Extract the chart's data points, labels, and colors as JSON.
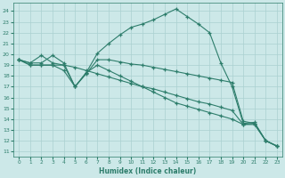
{
  "xlabel": "Humidex (Indice chaleur)",
  "line_color": "#2d7d6b",
  "bg_color": "#cce8e8",
  "grid_color": "#aad0d0",
  "xlim": [
    -0.5,
    23.5
  ],
  "ylim": [
    10.5,
    24.8
  ],
  "xticks": [
    0,
    1,
    2,
    3,
    4,
    5,
    6,
    7,
    8,
    9,
    10,
    11,
    12,
    13,
    14,
    15,
    16,
    17,
    18,
    19,
    20,
    21,
    22,
    23
  ],
  "yticks": [
    11,
    12,
    13,
    14,
    15,
    16,
    17,
    18,
    19,
    20,
    21,
    22,
    23,
    24
  ],
  "series": [
    {
      "x": [
        0,
        1,
        2,
        3,
        4,
        5,
        6,
        7,
        8,
        9,
        10,
        11,
        12,
        13,
        14,
        15,
        16,
        17,
        18,
        19,
        20,
        21,
        22,
        23
      ],
      "y": [
        19.5,
        19.2,
        19.2,
        19.9,
        19.2,
        17.0,
        18.3,
        20.1,
        21.0,
        21.8,
        22.5,
        22.8,
        23.2,
        23.7,
        24.2,
        23.5,
        22.8,
        22.0,
        19.2,
        17.0,
        13.6,
        13.7,
        12.0,
        11.5
      ]
    },
    {
      "x": [
        0,
        1,
        2,
        3,
        4,
        5,
        6,
        7,
        8,
        9,
        10,
        11,
        12,
        13,
        14,
        15,
        16,
        17,
        18,
        19,
        20,
        21,
        22,
        23
      ],
      "y": [
        19.5,
        19.0,
        19.0,
        19.0,
        19.0,
        18.8,
        18.5,
        18.2,
        17.9,
        17.6,
        17.3,
        17.0,
        16.8,
        16.5,
        16.2,
        15.9,
        15.6,
        15.4,
        15.1,
        14.8,
        13.5,
        13.6,
        12.0,
        11.5
      ]
    },
    {
      "x": [
        0,
        1,
        2,
        3,
        4,
        5,
        6,
        7,
        8,
        9,
        10,
        11,
        12,
        13,
        14,
        15,
        16,
        17,
        18,
        19,
        20,
        21,
        22,
        23
      ],
      "y": [
        19.5,
        19.0,
        19.0,
        19.0,
        18.5,
        17.0,
        18.3,
        19.0,
        18.5,
        18.0,
        17.5,
        17.0,
        16.5,
        16.0,
        15.5,
        15.2,
        14.9,
        14.6,
        14.3,
        14.0,
        13.5,
        13.5,
        12.0,
        11.5
      ]
    },
    {
      "x": [
        0,
        1,
        2,
        3,
        4,
        5,
        6,
        7,
        8,
        9,
        10,
        11,
        12,
        13,
        14,
        15,
        16,
        17,
        18,
        19,
        20,
        21,
        22,
        23
      ],
      "y": [
        19.5,
        19.2,
        19.9,
        19.2,
        19.0,
        17.0,
        18.2,
        19.5,
        19.5,
        19.3,
        19.1,
        19.0,
        18.8,
        18.6,
        18.4,
        18.2,
        18.0,
        17.8,
        17.6,
        17.4,
        13.8,
        13.6,
        12.0,
        11.5
      ]
    }
  ]
}
